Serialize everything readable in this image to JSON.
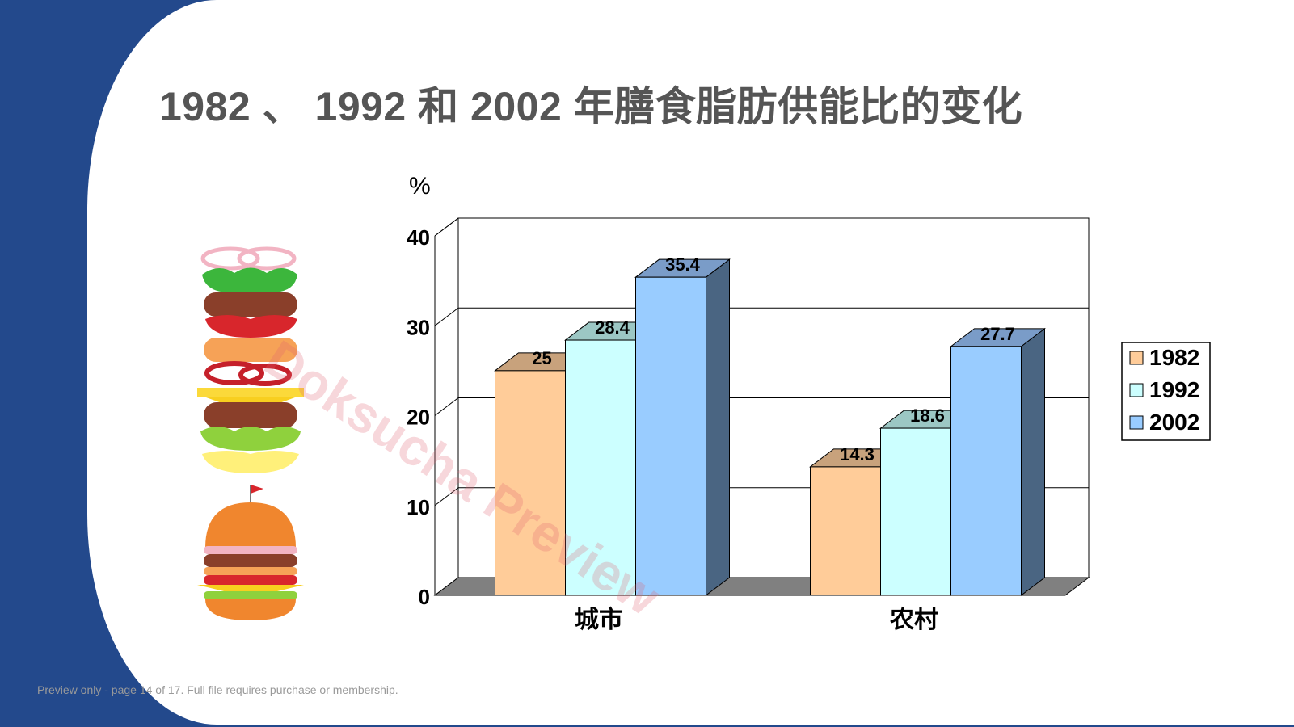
{
  "slide": {
    "title": "1982 、 1992  和 2002 年膳食脂肪供能比的变化",
    "footer_note": "Preview only - page 14 of 17. Full file requires purchase or membership.",
    "watermark": "Doksucha Preview",
    "illustration": "burger-ingredients-illustration"
  },
  "chart_data": {
    "type": "bar",
    "variant": "3d-clustered",
    "title": "",
    "ylabel": "%",
    "xlabel": "",
    "categories": [
      "城市",
      "农村"
    ],
    "series": [
      {
        "name": "1982",
        "values": [
          25,
          14.3
        ],
        "color": "#ffcc99",
        "top": "#c8a27c",
        "side": "#8a6a4a"
      },
      {
        "name": "1992",
        "values": [
          28.4,
          18.6
        ],
        "color": "#ccffff",
        "top": "#9cc7c4",
        "side": "#6d8f8d"
      },
      {
        "name": "2002",
        "values": [
          35.4,
          27.7
        ],
        "color": "#99ccff",
        "top": "#7a9cc8",
        "side": "#4a6582"
      }
    ],
    "ylim": [
      0,
      40
    ],
    "yticks": [
      "0",
      "10",
      "20",
      "30",
      "40"
    ],
    "grid": true,
    "legend": "right"
  }
}
